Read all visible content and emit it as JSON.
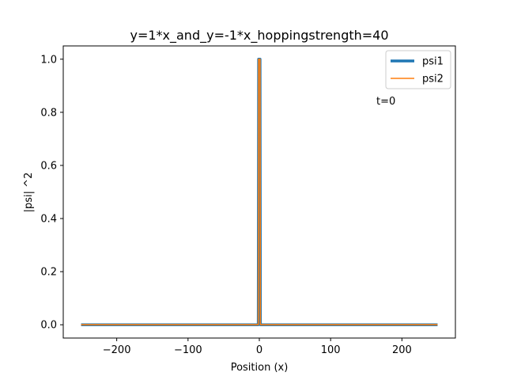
{
  "chart_data": {
    "type": "line",
    "title": "y=1*x_and_y=-1*x_hoppingstrength=40",
    "xlabel": "Position (x)",
    "ylabel": "|psi| ^2",
    "xlim": [
      -275,
      275
    ],
    "ylim": [
      -0.05,
      1.05
    ],
    "xticks": [
      -200,
      -100,
      0,
      100,
      200
    ],
    "xtick_labels": [
      "−200",
      "−100",
      "0",
      "100",
      "200"
    ],
    "yticks": [
      0.0,
      0.2,
      0.4,
      0.6,
      0.8,
      1.0
    ],
    "ytick_labels": [
      "0.0",
      "0.2",
      "0.4",
      "0.6",
      "0.8",
      "1.0"
    ],
    "grid": false,
    "legend_position": "top-right",
    "annotation": "t=0",
    "series": [
      {
        "name": "psi1",
        "color": "#1f77b4",
        "x": [
          -250,
          -1.5,
          -1,
          0,
          1,
          1.5,
          250
        ],
        "y": [
          0,
          0,
          1.0,
          1.0,
          1.0,
          0,
          0
        ]
      },
      {
        "name": "psi2",
        "color": "#ff7f0e",
        "x": [
          -250,
          -1.5,
          -1,
          0,
          1,
          1.5,
          250
        ],
        "y": [
          0,
          0,
          1.0,
          1.0,
          1.0,
          0,
          0
        ]
      }
    ]
  }
}
